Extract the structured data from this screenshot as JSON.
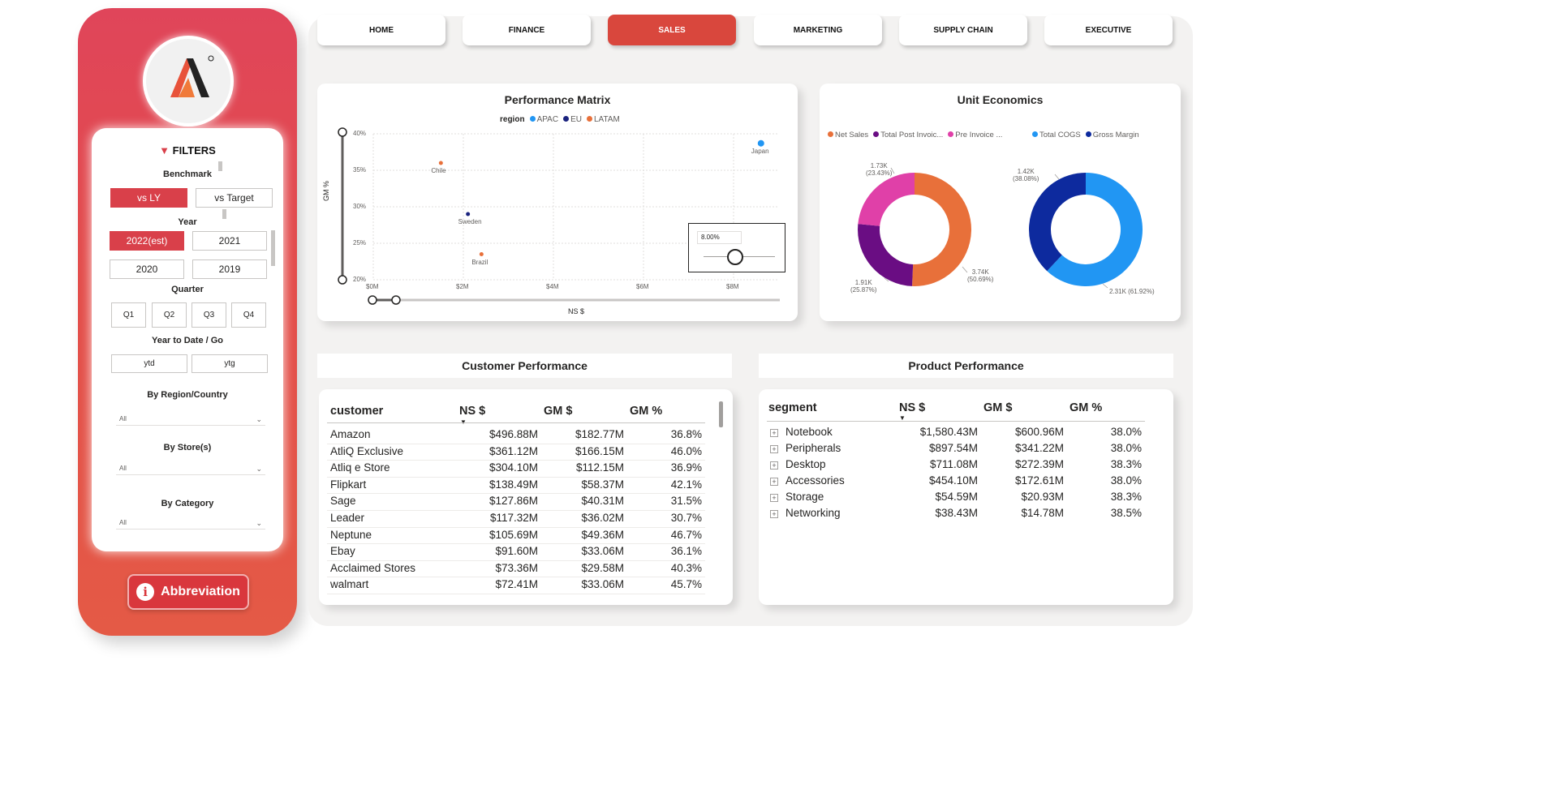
{
  "nav": {
    "tabs": [
      {
        "label": "HOME",
        "active": false
      },
      {
        "label": "FINANCE",
        "active": false
      },
      {
        "label": "SALES",
        "active": true
      },
      {
        "label": "MARKETING",
        "active": false
      },
      {
        "label": "SUPPLY CHAIN",
        "active": false
      },
      {
        "label": "EXECUTIVE",
        "active": false
      }
    ]
  },
  "sidebar": {
    "logo_icon": "atliq-logo-icon",
    "filters": {
      "title": "FILTERS",
      "icon": "funnel-icon",
      "benchmark": {
        "label": "Benchmark",
        "options": [
          "vs LY",
          "vs Target"
        ],
        "selected": "vs LY"
      },
      "year": {
        "label": "Year",
        "options": [
          "2022(est)",
          "2021",
          "2020",
          "2019"
        ],
        "selected": "2022(est)"
      },
      "quarter": {
        "label": "Quarter",
        "options": [
          "Q1",
          "Q2",
          "Q3",
          "Q4"
        ]
      },
      "ytd": {
        "label": "Year to Date / Go",
        "options": [
          "ytd",
          "ytg"
        ]
      },
      "region": {
        "label": "By Region/Country",
        "value": "All"
      },
      "store": {
        "label": "By Store(s)",
        "value": "All"
      },
      "category": {
        "label": "By Category",
        "value": "All"
      }
    },
    "abbreviation_label": "Abbreviation"
  },
  "performance_matrix": {
    "title": "Performance Matrix",
    "slider_value": "8.00%",
    "chart_data": {
      "type": "scatter",
      "legend_title": "region",
      "legend": [
        {
          "name": "APAC",
          "color": "#2196f3"
        },
        {
          "name": "EU",
          "color": "#1a237e"
        },
        {
          "name": "LATAM",
          "color": "#e8703a"
        }
      ],
      "xlabel": "NS $",
      "ylabel": "GM %",
      "x_ticks": [
        "$0M",
        "$2M",
        "$4M",
        "$6M",
        "$8M"
      ],
      "y_ticks": [
        "40%",
        "35%",
        "30%",
        "25%",
        "20%"
      ],
      "xlim": [
        0,
        9
      ],
      "ylim": [
        20,
        40
      ],
      "points": [
        {
          "label": "Japan",
          "region": "APAC",
          "x": 8.6,
          "y": 38.7
        },
        {
          "label": "Chile",
          "region": "LATAM",
          "x": 1.5,
          "y": 36.0
        },
        {
          "label": "Sweden",
          "region": "EU",
          "x": 2.1,
          "y": 29.0
        },
        {
          "label": "Brazil",
          "region": "LATAM",
          "x": 2.4,
          "y": 23.5
        }
      ]
    }
  },
  "unit_economics": {
    "title": "Unit Economics",
    "chart_data": [
      {
        "type": "pie",
        "legend": [
          {
            "name": "Net Sales",
            "color": "#e8703a"
          },
          {
            "name": "Total Post Invoic...",
            "color": "#6a0d83"
          },
          {
            "name": "Pre Invoice ...",
            "color": "#e040a8"
          }
        ],
        "slices": [
          {
            "name": "Net Sales",
            "value": 3.74,
            "percent": 50.69,
            "color": "#e8703a",
            "label": "3.74K",
            "pct_label": "(50.69%)"
          },
          {
            "name": "Total Post Invoic...",
            "value": 1.91,
            "percent": 25.87,
            "color": "#6a0d83",
            "label": "1.91K",
            "pct_label": "(25.87%)"
          },
          {
            "name": "Pre Invoice ...",
            "value": 1.73,
            "percent": 23.43,
            "color": "#e040a8",
            "label": "1.73K",
            "pct_label": "(23.43%)"
          }
        ]
      },
      {
        "type": "pie",
        "legend": [
          {
            "name": "Total COGS",
            "color": "#2196f3"
          },
          {
            "name": "Gross Margin",
            "color": "#0d2a9e"
          }
        ],
        "slices": [
          {
            "name": "Total COGS",
            "value": 2.31,
            "percent": 61.92,
            "color": "#2196f3",
            "label": "2.31K",
            "pct_label": "(61.92%)"
          },
          {
            "name": "Gross Margin",
            "value": 1.42,
            "percent": 38.08,
            "color": "#0d2a9e",
            "label": "1.42K",
            "pct_label": "(38.08%)"
          }
        ]
      }
    ]
  },
  "customer_performance": {
    "title": "Customer Performance",
    "columns": [
      "customer",
      "NS $",
      "GM $",
      "GM %"
    ],
    "rows": [
      [
        "Amazon",
        "$496.88M",
        "$182.77M",
        "36.8%"
      ],
      [
        "AtliQ Exclusive",
        "$361.12M",
        "$166.15M",
        "46.0%"
      ],
      [
        "Atliq e Store",
        "$304.10M",
        "$112.15M",
        "36.9%"
      ],
      [
        "Flipkart",
        "$138.49M",
        "$58.37M",
        "42.1%"
      ],
      [
        "Sage",
        "$127.86M",
        "$40.31M",
        "31.5%"
      ],
      [
        "Leader",
        "$117.32M",
        "$36.02M",
        "30.7%"
      ],
      [
        "Neptune",
        "$105.69M",
        "$49.36M",
        "46.7%"
      ],
      [
        "Ebay",
        "$91.60M",
        "$33.06M",
        "36.1%"
      ],
      [
        "Acclaimed Stores",
        "$73.36M",
        "$29.58M",
        "40.3%"
      ],
      [
        "walmart",
        "$72.41M",
        "$33.06M",
        "45.7%"
      ]
    ]
  },
  "product_performance": {
    "title": "Product Performance",
    "columns": [
      "segment",
      "NS $",
      "GM $",
      "GM %"
    ],
    "rows": [
      [
        "Notebook",
        "$1,580.43M",
        "$600.96M",
        "38.0%"
      ],
      [
        "Peripherals",
        "$897.54M",
        "$341.22M",
        "38.0%"
      ],
      [
        "Desktop",
        "$711.08M",
        "$272.39M",
        "38.3%"
      ],
      [
        "Accessories",
        "$454.10M",
        "$172.61M",
        "38.0%"
      ],
      [
        "Storage",
        "$54.59M",
        "$20.93M",
        "38.3%"
      ],
      [
        "Networking",
        "$38.43M",
        "$14.78M",
        "38.5%"
      ]
    ]
  }
}
